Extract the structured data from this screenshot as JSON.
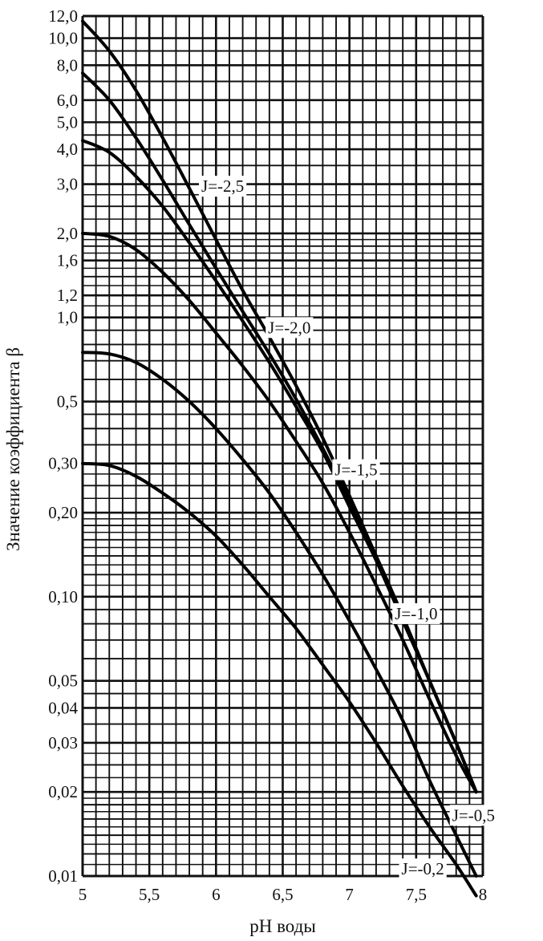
{
  "chart_data": {
    "type": "line",
    "title": "",
    "xlabel": "pH воды",
    "ylabel": "Значение коэффициента β",
    "xlim": [
      5,
      8
    ],
    "ylim": [
      0.01,
      12
    ],
    "yscale": "log",
    "grid": true,
    "x_ticks": [
      5,
      5.5,
      6,
      6.5,
      7,
      7.5,
      8
    ],
    "x_tick_labels": [
      "5",
      "5,5",
      "6",
      "6,5",
      "7",
      "7,5",
      "8"
    ],
    "y_ticks": [
      0.01,
      0.02,
      0.03,
      0.04,
      0.05,
      0.1,
      0.2,
      0.3,
      0.5,
      1.0,
      1.2,
      1.6,
      2.0,
      3.0,
      4.0,
      5.0,
      6.0,
      8.0,
      10.0,
      12.0
    ],
    "y_tick_labels": [
      "0,01",
      "0,02",
      "0,03",
      "0,04",
      "0,05",
      "0,10",
      "0,20",
      "0,30",
      "0,5",
      "1,0",
      "1,2",
      "1,6",
      "2,0",
      "3,0",
      "4,0",
      "5,0",
      "6,0",
      "8,0",
      "10,0",
      "12,0"
    ],
    "series": [
      {
        "name": "J=-2,5",
        "x": [
          5.0,
          5.2,
          5.4,
          5.6,
          5.8,
          6.0,
          6.2,
          6.4,
          6.6,
          6.8,
          7.0,
          7.2,
          7.4,
          7.6,
          7.8,
          7.95
        ],
        "y": [
          11.5,
          9.0,
          6.5,
          4.4,
          2.9,
          1.9,
          1.25,
          0.85,
          0.57,
          0.37,
          0.23,
          0.14,
          0.085,
          0.05,
          0.03,
          0.02
        ]
      },
      {
        "name": "J=-2,0",
        "x": [
          5.0,
          5.2,
          5.4,
          5.6,
          5.8,
          6.0,
          6.2,
          6.4,
          6.6,
          6.8,
          7.0,
          7.2,
          7.4,
          7.6,
          7.8,
          7.95
        ],
        "y": [
          7.5,
          6.0,
          4.4,
          3.1,
          2.15,
          1.5,
          1.05,
          0.74,
          0.51,
          0.34,
          0.22,
          0.14,
          0.085,
          0.05,
          0.03,
          0.02
        ]
      },
      {
        "name": "J=-1,5",
        "x": [
          5.0,
          5.2,
          5.4,
          5.6,
          5.8,
          6.0,
          6.2,
          6.4,
          6.6,
          6.8,
          7.0,
          7.2,
          7.4,
          7.6,
          7.8,
          7.95
        ],
        "y": [
          4.3,
          3.9,
          3.2,
          2.5,
          1.85,
          1.35,
          0.97,
          0.69,
          0.48,
          0.33,
          0.21,
          0.135,
          0.082,
          0.05,
          0.03,
          0.02
        ]
      },
      {
        "name": "J=-1,0",
        "x": [
          5.0,
          5.2,
          5.4,
          5.6,
          5.8,
          6.0,
          6.2,
          6.4,
          6.6,
          6.8,
          7.0,
          7.2,
          7.4,
          7.6,
          7.8,
          7.95
        ],
        "y": [
          2.0,
          1.95,
          1.75,
          1.45,
          1.15,
          0.88,
          0.67,
          0.5,
          0.36,
          0.255,
          0.17,
          0.11,
          0.07,
          0.043,
          0.027,
          0.02
        ]
      },
      {
        "name": "J=-0,5",
        "x": [
          5.0,
          5.2,
          5.4,
          5.6,
          5.8,
          6.0,
          6.2,
          6.4,
          6.6,
          6.8,
          7.0,
          7.2,
          7.4,
          7.6,
          7.8,
          7.95
        ],
        "y": [
          0.75,
          0.74,
          0.69,
          0.6,
          0.5,
          0.4,
          0.31,
          0.235,
          0.17,
          0.12,
          0.082,
          0.055,
          0.036,
          0.022,
          0.014,
          0.01
        ]
      },
      {
        "name": "J=-0,2",
        "x": [
          5.0,
          5.2,
          5.4,
          5.6,
          5.8,
          6.0,
          6.2,
          6.4,
          6.6,
          6.8,
          7.0,
          7.2,
          7.4,
          7.6,
          7.8,
          7.95
        ],
        "y": [
          0.3,
          0.295,
          0.27,
          0.235,
          0.2,
          0.165,
          0.13,
          0.1,
          0.077,
          0.057,
          0.042,
          0.03,
          0.021,
          0.015,
          0.011,
          0.0085
        ]
      }
    ]
  },
  "curve_labels": [
    {
      "text": "J=-2,5",
      "at_x": 6.05,
      "at_y": 2.95
    },
    {
      "text": "J=-2,0",
      "at_x": 6.55,
      "at_y": 0.92
    },
    {
      "text": "J=-1,5",
      "at_x": 7.05,
      "at_y": 0.285
    },
    {
      "text": "J=-1,0",
      "at_x": 7.5,
      "at_y": 0.087
    },
    {
      "text": "J=-0,5",
      "at_x": 7.93,
      "at_y": 0.0165
    },
    {
      "text": "J=-0,2",
      "at_x": 7.55,
      "at_y": 0.0106
    }
  ],
  "colors": {
    "grid": "#111111",
    "curve": "#000000",
    "text": "#111111",
    "background": "#ffffff"
  }
}
